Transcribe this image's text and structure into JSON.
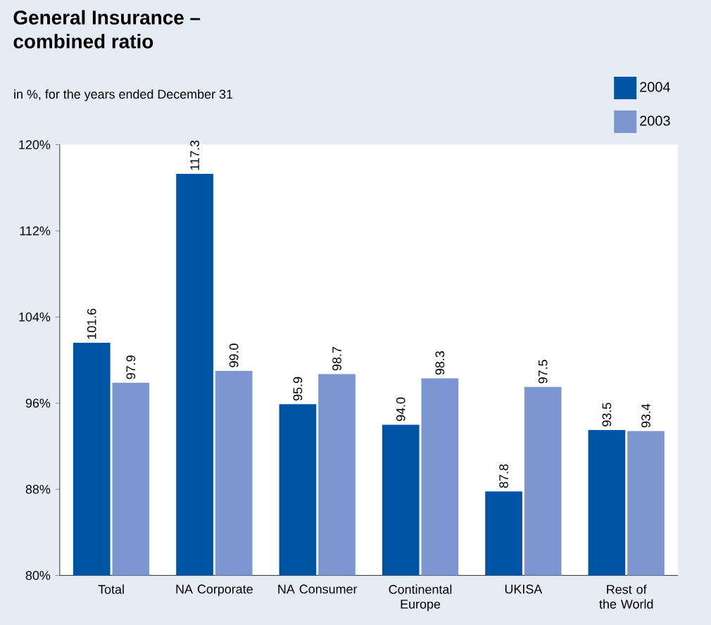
{
  "chart_data": {
    "type": "bar",
    "title": "General Insurance –\ncombined ratio",
    "subtitle": "in %, for the years ended December 31",
    "categories": [
      "Total",
      "NA Corporate",
      "NA Consumer",
      "Continental Europe",
      "UKISA",
      "Rest of the World"
    ],
    "series": [
      {
        "name": "2004",
        "color": "#0054a6",
        "values": [
          101.6,
          117.3,
          95.9,
          94.0,
          87.8,
          93.5
        ],
        "value_labels": [
          "101.6",
          "117.3",
          "95.9",
          "94.0",
          "87.8",
          "93.5"
        ]
      },
      {
        "name": "2003",
        "color": "#7b96d0",
        "values": [
          97.9,
          99.0,
          98.7,
          98.3,
          97.5,
          93.4
        ],
        "value_labels": [
          "97.9",
          "99.0",
          "98.7",
          "98.3",
          "97.5",
          "93.4"
        ]
      }
    ],
    "ylim": [
      80,
      120
    ],
    "yticks": [
      {
        "value": 80,
        "label": "80%"
      },
      {
        "value": 88,
        "label": "88%"
      },
      {
        "value": 96,
        "label": "96%"
      },
      {
        "value": 104,
        "label": "104%"
      },
      {
        "value": 112,
        "label": "112%"
      },
      {
        "value": 120,
        "label": "120%"
      }
    ],
    "grid": false,
    "legend": "top right"
  }
}
